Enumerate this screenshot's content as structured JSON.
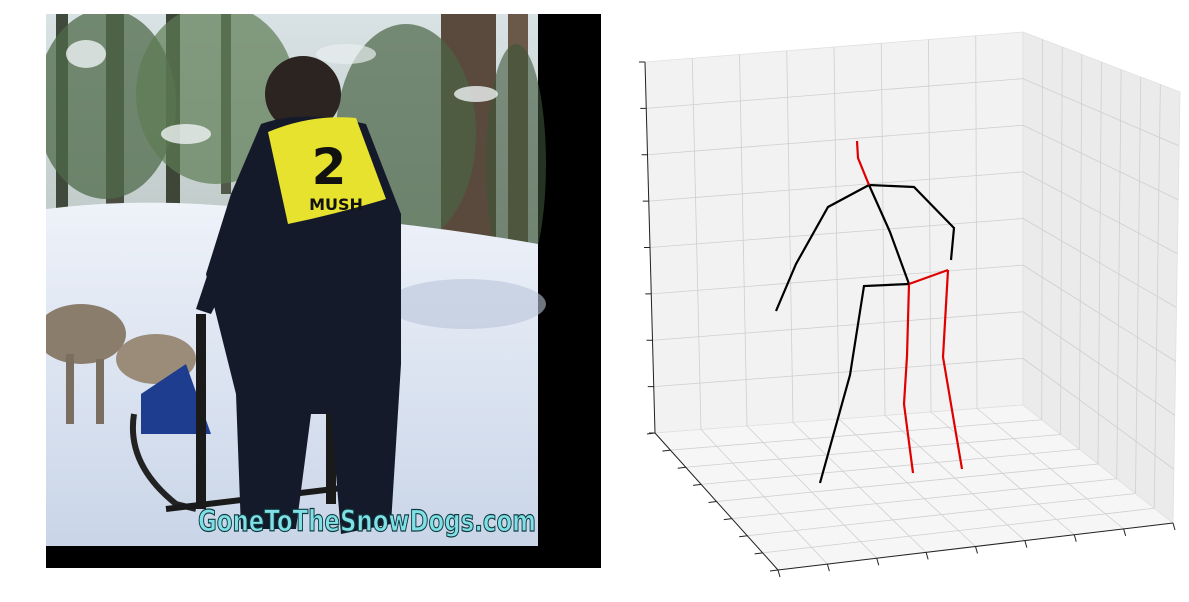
{
  "photo": {
    "bib_number": "2",
    "bib_text": "MUSH",
    "watermark": "GoneToTheSnowDogs.com",
    "colors": {
      "bib": "#e6e22e",
      "suit": "#141a2a",
      "snow": "#dfe6f2",
      "sled": "#1f3d8f",
      "watermark": "#7fe0e6"
    }
  },
  "pose_plot": {
    "grid": true,
    "pane_color": "#f2f2f2",
    "grid_color": "#cfcfcf",
    "colors": {
      "left_side": "#000000",
      "right_side": "#e00000"
    }
  }
}
